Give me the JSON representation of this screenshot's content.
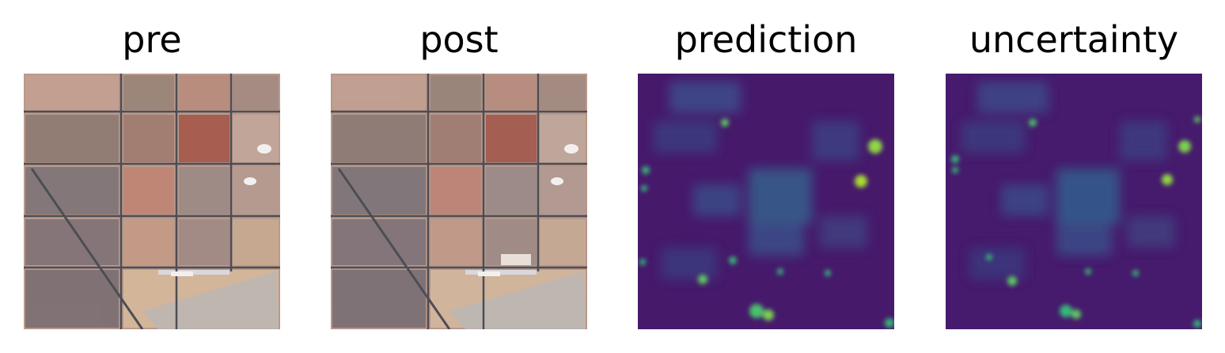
{
  "panels": [
    {
      "title": "pre"
    },
    {
      "title": "post"
    },
    {
      "title": "prediction"
    },
    {
      "title": "uncertainty"
    }
  ],
  "colors": {
    "background": "#ffffff",
    "viridis_low": "#440154",
    "viridis_dark": "#3b1f6a",
    "viridis_mid": "#2f6b8e",
    "viridis_teal": "#21918c",
    "viridis_green": "#5ec962",
    "viridis_high": "#fde725",
    "satellite_soil": "#c9a48c",
    "satellite_road": "#4a4a52",
    "satellite_roof": "#a65a4a"
  }
}
